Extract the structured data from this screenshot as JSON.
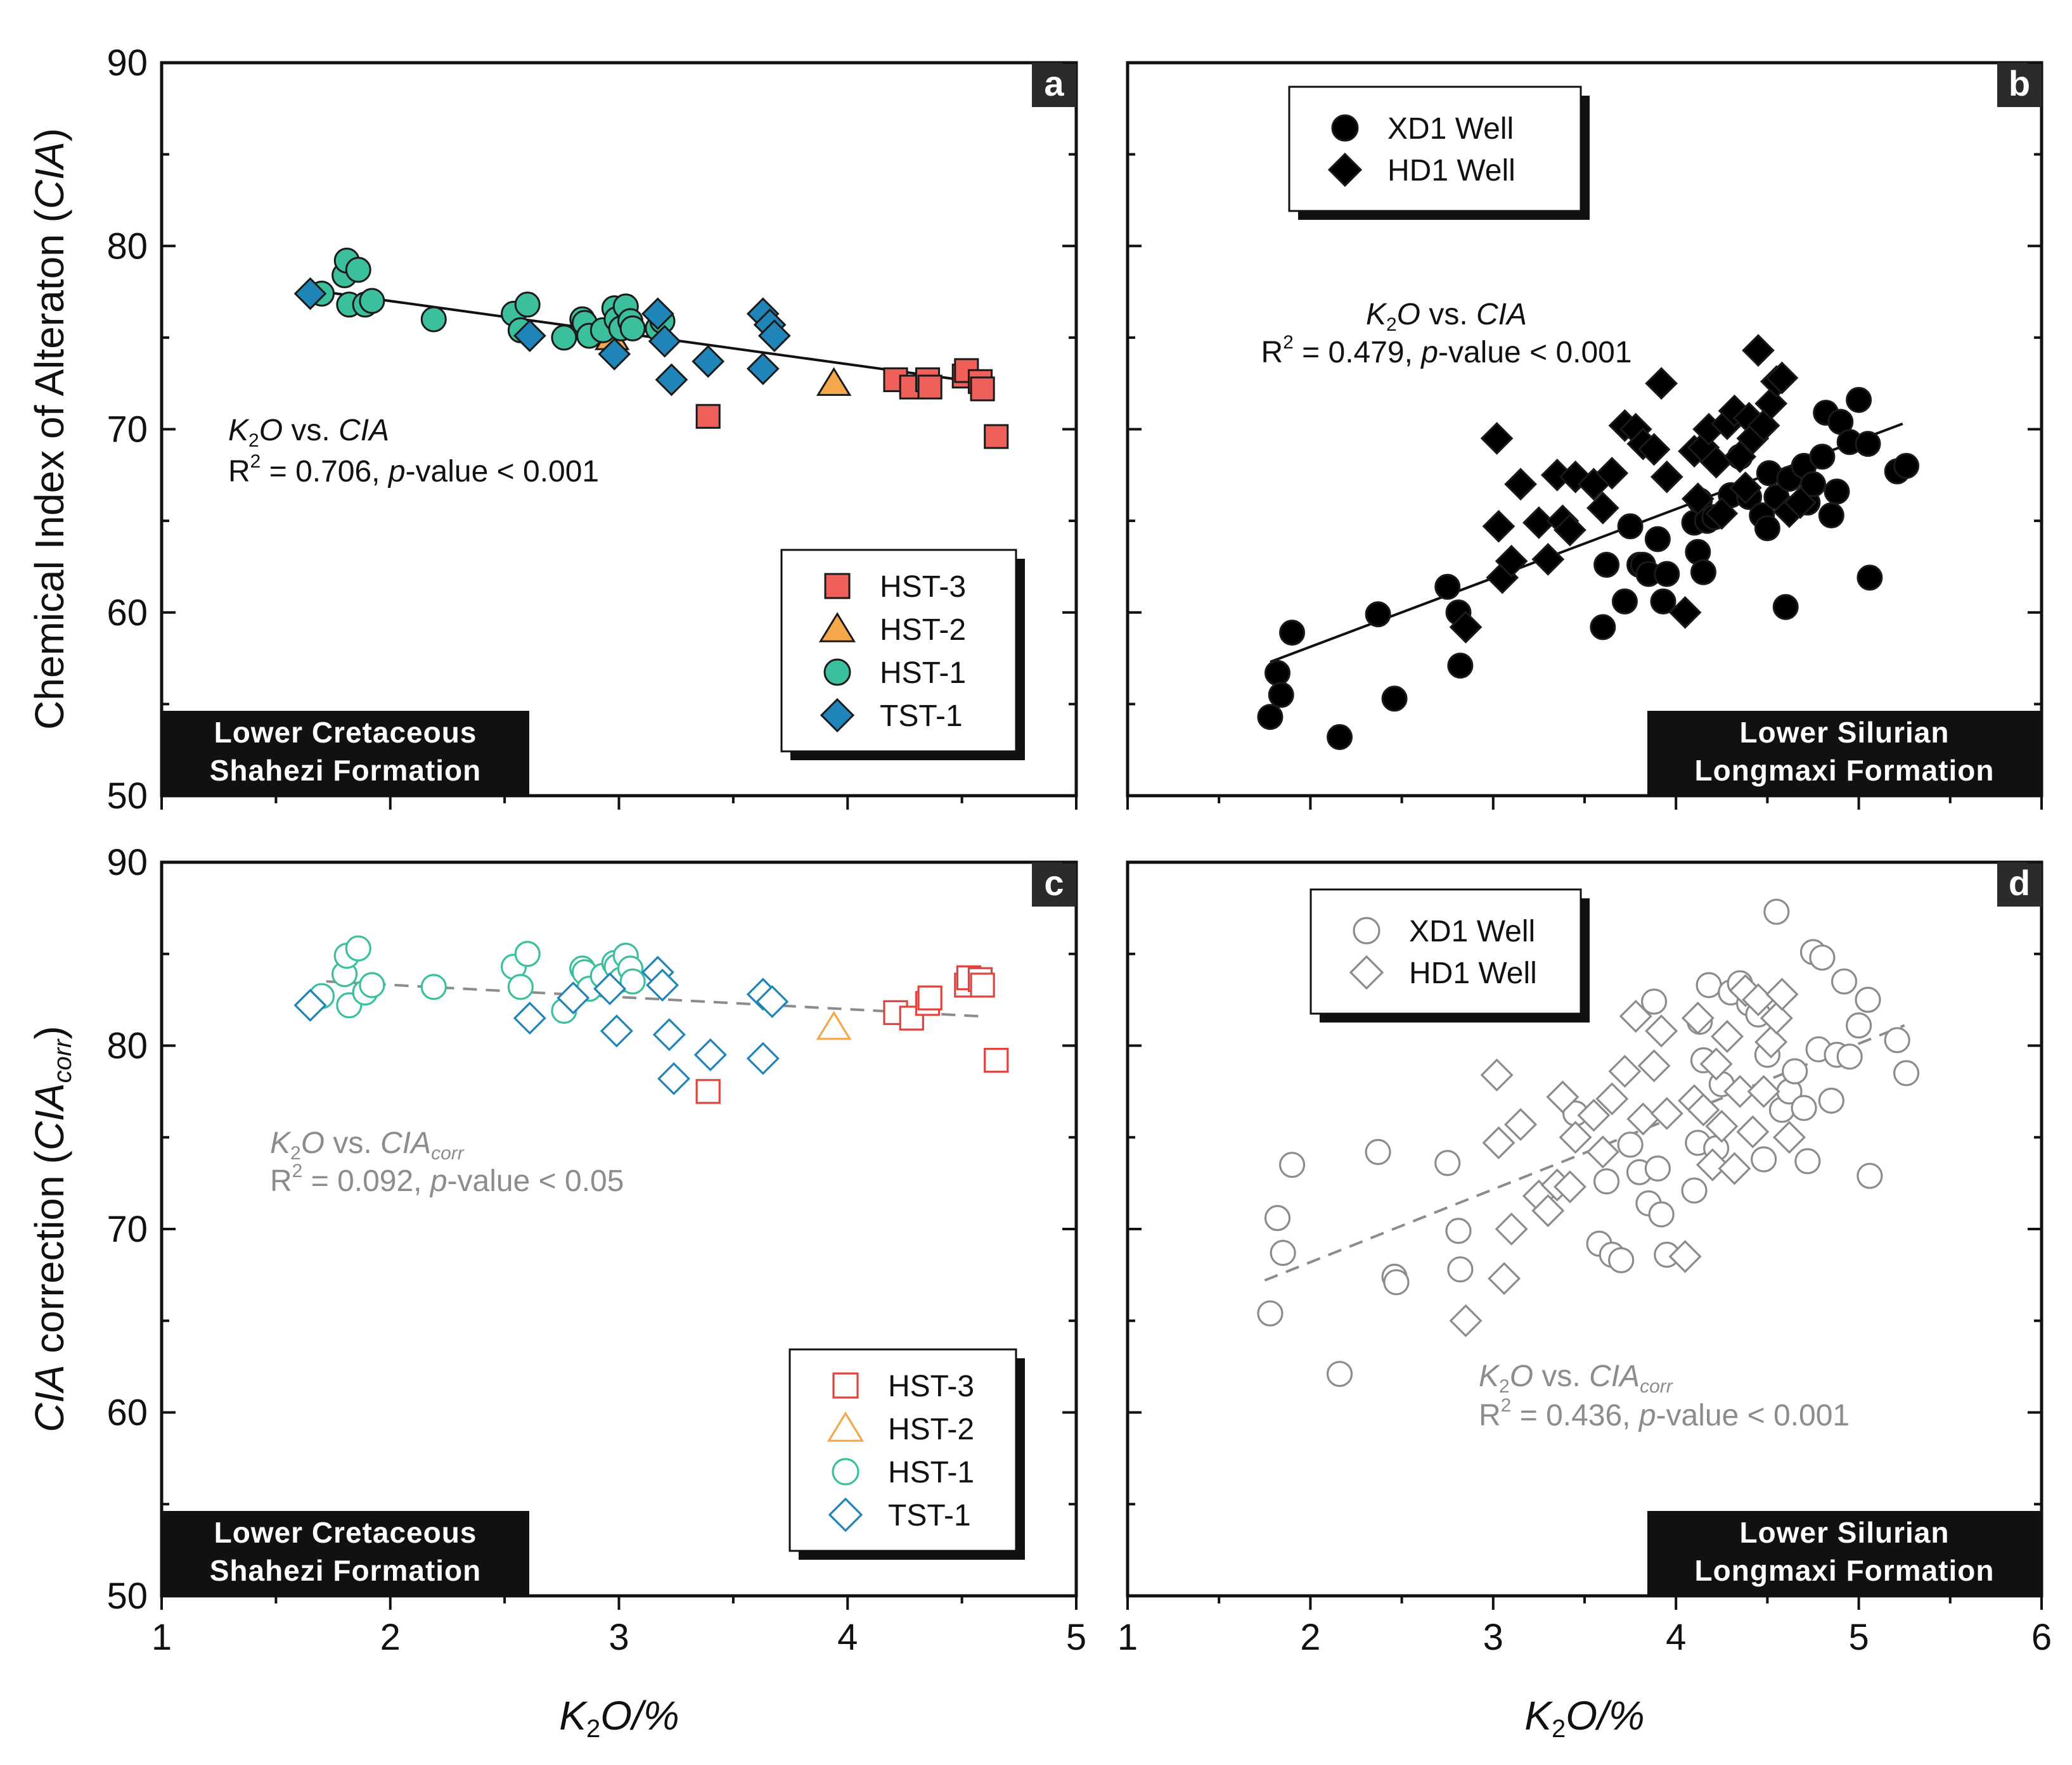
{
  "chart_data": [
    {
      "panel": "a",
      "type": "scatter",
      "xlim": [
        1,
        5
      ],
      "ylim": [
        50,
        90
      ],
      "xticks": [
        1,
        2,
        3,
        4,
        5
      ],
      "yticks": [
        50,
        60,
        70,
        80,
        90
      ],
      "xlabel": "",
      "ylabel": "Chemical Index of Alteraton (CIA)",
      "ylabel_plain": "Chemical Index of Alteraton (",
      "ylabel_italic": "CIA",
      "ylabel_close": ")",
      "formation": [
        "Lower Cretaceous",
        "Shahezi Formation"
      ],
      "fit": {
        "type": "solid",
        "color": "#111111",
        "x": [
          1.65,
          4.55
        ],
        "y": [
          77.6,
          72.6
        ]
      },
      "stats": {
        "text_lines": [
          "K2O vs. CIA",
          "R2 = 0.706, p-value < 0.001"
        ],
        "x_var": "K",
        "x_sub": "2",
        "x_var2": "O",
        "vs": " vs. ",
        "y_var": "CIA",
        "y_sub": "",
        "r2_prefix": "R",
        "r2_sup": "2",
        "r2_value": " = 0.706, ",
        "p_label": "p",
        "p_rest": "-value < 0.001",
        "color": "#111111"
      },
      "legend_position": "bottom-right",
      "series": [
        {
          "name": "HST-3",
          "marker": "square",
          "filled": true,
          "color": "#f0605a",
          "x": [
            4.21,
            4.28,
            4.35,
            4.36,
            4.51,
            4.52,
            4.58,
            4.59,
            4.65,
            3.39
          ],
          "y": [
            72.7,
            72.3,
            72.7,
            72.3,
            72.9,
            73.2,
            72.6,
            72.2,
            69.6,
            70.7
          ]
        },
        {
          "name": "HST-2",
          "marker": "triangle",
          "filled": true,
          "color": "#f5a84b",
          "x": [
            2.97,
            3.94
          ],
          "y": [
            75.0,
            72.5
          ]
        },
        {
          "name": "HST-1",
          "marker": "circle",
          "filled": true,
          "color": "#3bbf9d",
          "x": [
            1.7,
            1.8,
            1.81,
            1.82,
            1.86,
            1.89,
            1.92,
            2.19,
            2.54,
            2.57,
            2.6,
            2.76,
            2.84,
            2.85,
            2.87,
            2.93,
            2.98,
            2.99,
            3.01,
            3.03,
            3.05,
            3.06,
            3.17,
            3.19
          ],
          "y": [
            77.4,
            78.4,
            79.2,
            76.8,
            78.7,
            76.8,
            77.0,
            76.0,
            76.3,
            75.4,
            76.8,
            75.0,
            76.0,
            75.8,
            75.1,
            75.4,
            76.6,
            76.0,
            75.5,
            76.7,
            75.9,
            75.5,
            75.5,
            75.9
          ]
        },
        {
          "name": "TST-1",
          "marker": "diamond",
          "filled": true,
          "color": "#1f84b8",
          "x": [
            1.65,
            2.61,
            2.98,
            3.17,
            3.2,
            3.23,
            3.39,
            3.63,
            3.63,
            3.66,
            3.68
          ],
          "y": [
            77.4,
            75.1,
            74.1,
            76.3,
            74.8,
            72.7,
            73.7,
            76.3,
            73.3,
            75.7,
            75.1
          ]
        }
      ]
    },
    {
      "panel": "b",
      "type": "scatter",
      "xlim": [
        1,
        6
      ],
      "ylim": [
        50,
        90
      ],
      "xticks": [
        1,
        2,
        3,
        4,
        5,
        6
      ],
      "yticks": [
        50,
        60,
        70,
        80,
        90
      ],
      "xlabel": "",
      "ylabel": "",
      "formation": [
        "Lower Silurian",
        "Longmaxi Formation"
      ],
      "fit": {
        "type": "solid",
        "color": "#111111",
        "x": [
          1.78,
          5.24
        ],
        "y": [
          57.3,
          70.3
        ]
      },
      "stats": {
        "text_lines": [
          "K2O vs. CIA",
          "R2 = 0.479, p-value < 0.001"
        ],
        "x_var": "K",
        "x_sub": "2",
        "x_var2": "O",
        "vs": " vs. ",
        "y_var": "CIA",
        "y_sub": "",
        "r2_prefix": "R",
        "r2_sup": "2",
        "r2_value": " = 0.479, ",
        "p_label": "p",
        "p_rest": "-value < 0.001",
        "color": "#111111"
      },
      "legend_position": "top-left",
      "series": [
        {
          "name": "XD1 Well",
          "marker": "circle",
          "filled": true,
          "color": "#000000",
          "x": [
            1.78,
            1.82,
            1.84,
            1.9,
            2.16,
            2.37,
            2.46,
            2.75,
            2.81,
            2.82,
            3.6,
            3.62,
            3.72,
            3.75,
            3.8,
            3.82,
            3.85,
            3.9,
            3.93,
            3.95,
            4.1,
            4.12,
            4.13,
            4.15,
            4.17,
            4.21,
            4.3,
            4.35,
            4.4,
            4.47,
            4.5,
            4.51,
            4.55,
            4.6,
            4.62,
            4.7,
            4.72,
            4.75,
            4.8,
            4.82,
            4.85,
            4.88,
            4.9,
            4.95,
            5.0,
            5.05,
            5.06,
            5.21,
            5.26
          ],
          "y": [
            54.3,
            56.7,
            55.5,
            58.9,
            53.2,
            59.9,
            55.3,
            61.4,
            60.0,
            57.1,
            59.2,
            62.6,
            60.6,
            64.7,
            62.6,
            62.6,
            62.1,
            64.0,
            60.6,
            62.1,
            64.9,
            63.3,
            66.1,
            62.2,
            65.0,
            65.2,
            66.4,
            68.5,
            66.3,
            65.3,
            64.6,
            67.6,
            66.3,
            60.3,
            67.3,
            68.0,
            66.0,
            67.0,
            68.5,
            70.9,
            65.3,
            66.6,
            70.4,
            69.3,
            71.6,
            69.2,
            61.9,
            67.7,
            68.0
          ]
        },
        {
          "name": "HD1 Well",
          "marker": "diamond",
          "filled": true,
          "color": "#000000",
          "x": [
            3.02,
            3.03,
            3.05,
            3.1,
            3.15,
            3.25,
            3.3,
            3.35,
            3.38,
            3.42,
            3.45,
            3.55,
            3.6,
            3.65,
            3.72,
            3.78,
            3.82,
            3.88,
            3.92,
            3.95,
            4.05,
            4.1,
            4.12,
            4.15,
            4.18,
            4.22,
            4.25,
            4.28,
            4.32,
            4.35,
            4.38,
            4.4,
            4.42,
            4.45,
            4.48,
            4.52,
            4.55,
            4.58,
            4.62,
            4.68,
            2.85
          ],
          "y": [
            69.5,
            64.7,
            61.9,
            62.8,
            67.0,
            64.9,
            62.9,
            67.5,
            65.0,
            64.5,
            67.4,
            67.0,
            65.7,
            67.6,
            70.2,
            70.0,
            69.2,
            68.9,
            72.5,
            67.4,
            60.0,
            68.8,
            66.2,
            69.0,
            70.0,
            68.2,
            65.4,
            70.3,
            71.0,
            68.5,
            66.8,
            70.6,
            69.5,
            74.3,
            70.2,
            71.4,
            72.6,
            72.8,
            65.5,
            66.0,
            59.2
          ]
        }
      ]
    },
    {
      "panel": "c",
      "type": "scatter",
      "xlim": [
        1,
        5
      ],
      "ylim": [
        50,
        90
      ],
      "xticks": [
        1,
        2,
        3,
        4,
        5
      ],
      "yticks": [
        50,
        60,
        70,
        80,
        90
      ],
      "xlabel": "K2O/%",
      "ylabel": "CIA correction (CIAcorr)",
      "formation": [
        "Lower Cretaceous",
        "Shahezi Formation"
      ],
      "fit": {
        "type": "dashed",
        "color": "#8c8c8c",
        "x": [
          1.72,
          4.58
        ],
        "y": [
          83.5,
          81.6
        ]
      },
      "stats": {
        "text_lines": [
          "K2O vs. CIAcorr",
          "R2 = 0.092, p-value < 0.05"
        ],
        "x_var": "K",
        "x_sub": "2",
        "x_var2": "O",
        "vs": " vs. ",
        "y_var": "CIA",
        "y_sub": "corr",
        "r2_prefix": "R",
        "r2_sup": "2",
        "r2_value": " = 0.092, ",
        "p_label": "p",
        "p_rest": "-value < 0.05",
        "color": "#8c8c8c"
      },
      "legend_position": "bottom-right",
      "series": [
        {
          "name": "HST-3",
          "marker": "square",
          "filled": false,
          "color": "#e0443e",
          "x": [
            4.21,
            4.28,
            4.35,
            4.36,
            4.52,
            4.53,
            4.58,
            4.59,
            4.65,
            3.39
          ],
          "y": [
            81.8,
            81.5,
            82.3,
            82.6,
            83.3,
            83.7,
            83.6,
            83.3,
            79.2,
            77.5
          ]
        },
        {
          "name": "HST-2",
          "marker": "triangle",
          "filled": false,
          "color": "#f5a84b",
          "x": [
            3.94
          ],
          "y": [
            81.0
          ]
        },
        {
          "name": "HST-1",
          "marker": "circle",
          "filled": false,
          "color": "#3bbf9d",
          "x": [
            1.7,
            1.8,
            1.81,
            1.82,
            1.86,
            1.89,
            1.92,
            2.19,
            2.54,
            2.57,
            2.6,
            2.76,
            2.84,
            2.85,
            2.87,
            2.93,
            2.98,
            2.99,
            3.01,
            3.03,
            3.05,
            3.06
          ],
          "y": [
            82.7,
            83.9,
            84.9,
            82.2,
            85.3,
            82.9,
            83.3,
            83.2,
            84.3,
            83.2,
            85.0,
            81.9,
            84.2,
            84.0,
            83.1,
            83.8,
            84.5,
            84.3,
            83.6,
            84.9,
            84.2,
            83.5
          ]
        },
        {
          "name": "TST-1",
          "marker": "diamond",
          "filled": false,
          "color": "#1f84b8",
          "x": [
            1.65,
            2.61,
            2.8,
            2.96,
            2.99,
            3.17,
            3.19,
            3.22,
            3.24,
            3.4,
            3.63,
            3.63,
            3.67
          ],
          "y": [
            82.2,
            81.5,
            82.6,
            83.1,
            80.8,
            84.0,
            83.3,
            80.6,
            78.2,
            79.5,
            82.8,
            79.3,
            82.4
          ]
        }
      ]
    },
    {
      "panel": "d",
      "type": "scatter",
      "xlim": [
        1,
        6
      ],
      "ylim": [
        50,
        90
      ],
      "xticks": [
        1,
        2,
        3,
        4,
        5,
        6
      ],
      "yticks": [
        50,
        60,
        70,
        80,
        90
      ],
      "xlabel": "K2O/%",
      "ylabel": "",
      "formation": [
        "Lower Silurian",
        "Longmaxi Formation"
      ],
      "fit": {
        "type": "dashed",
        "color": "#8c8c8c",
        "x": [
          1.75,
          5.25
        ],
        "y": [
          67.2,
          81.1
        ]
      },
      "stats": {
        "text_lines": [
          "K2O vs. CIAcorr",
          "R2 = 0.436, p-value < 0.001"
        ],
        "x_var": "K",
        "x_sub": "2",
        "x_var2": "O",
        "vs": " vs. ",
        "y_var": "CIA",
        "y_sub": "corr",
        "r2_prefix": "R",
        "r2_sup": "2",
        "r2_value": " = 0.436, ",
        "p_label": "p",
        "p_rest": "-value < 0.001",
        "color": "#8c8c8c"
      },
      "legend_position": "top-left",
      "series": [
        {
          "name": "XD1 Well",
          "marker": "circle",
          "filled": false,
          "color": "#8c8c8c",
          "x": [
            1.78,
            1.82,
            1.85,
            1.9,
            2.16,
            2.37,
            2.46,
            2.47,
            2.75,
            2.81,
            2.82,
            3.45,
            3.58,
            3.62,
            3.65,
            3.7,
            3.75,
            3.8,
            3.85,
            3.88,
            3.9,
            3.92,
            3.95,
            4.1,
            4.12,
            4.13,
            4.15,
            4.18,
            4.22,
            4.25,
            4.3,
            4.35,
            4.4,
            4.45,
            4.48,
            4.5,
            4.55,
            4.58,
            4.62,
            4.65,
            4.7,
            4.72,
            4.75,
            4.78,
            4.8,
            4.85,
            4.88,
            4.92,
            4.95,
            5.0,
            5.05,
            5.06,
            5.21,
            5.26
          ],
          "y": [
            65.4,
            70.6,
            68.7,
            73.5,
            62.1,
            74.2,
            67.4,
            67.1,
            73.6,
            69.9,
            67.8,
            76.3,
            69.2,
            72.6,
            68.6,
            68.3,
            74.6,
            73.1,
            71.4,
            82.4,
            73.3,
            70.8,
            68.6,
            72.1,
            74.7,
            81.3,
            79.2,
            83.3,
            74.4,
            77.9,
            82.9,
            83.4,
            82.3,
            81.7,
            73.8,
            79.5,
            87.3,
            76.5,
            77.5,
            78.6,
            76.6,
            73.7,
            85.1,
            79.8,
            84.8,
            77.0,
            79.5,
            83.5,
            79.4,
            81.1,
            82.5,
            72.9,
            80.3,
            78.5
          ]
        },
        {
          "name": "HD1 Well",
          "marker": "diamond",
          "filled": false,
          "color": "#8c8c8c",
          "x": [
            3.02,
            3.03,
            3.06,
            3.1,
            3.15,
            3.25,
            3.3,
            3.35,
            3.38,
            3.42,
            3.45,
            3.55,
            3.6,
            3.65,
            3.72,
            3.78,
            3.82,
            3.88,
            3.92,
            3.95,
            4.05,
            4.1,
            4.12,
            4.15,
            4.2,
            4.22,
            4.25,
            4.28,
            4.32,
            4.35,
            4.38,
            4.42,
            4.45,
            4.48,
            4.52,
            4.55,
            4.58,
            4.62,
            2.85
          ],
          "y": [
            78.4,
            74.7,
            67.3,
            70.0,
            75.7,
            71.8,
            71.0,
            72.4,
            77.2,
            72.3,
            75.0,
            76.2,
            74.2,
            77.1,
            78.6,
            81.6,
            76.0,
            78.9,
            80.8,
            76.3,
            68.5,
            77.0,
            81.5,
            76.5,
            73.5,
            79.0,
            75.6,
            80.5,
            73.3,
            77.5,
            83.0,
            75.3,
            82.5,
            77.5,
            80.2,
            81.5,
            82.8,
            75.0,
            65.0
          ]
        }
      ]
    }
  ]
}
